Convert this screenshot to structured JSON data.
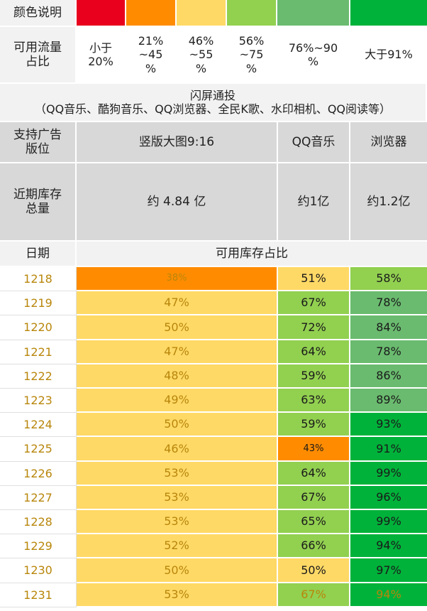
{
  "legend": {
    "label": "颜色说明",
    "colors": [
      "#e8001c",
      "#ff8c00",
      "#ffd966",
      "#92d050",
      "#6abb6f",
      "#00b23a"
    ]
  },
  "ranges": {
    "label": "可用流量\n占比",
    "values": [
      "小于\n20%",
      "21%\n~45\n%",
      "46%\n~55\n%",
      "56%\n~75\n%",
      "76%~90\n%",
      "大于91%"
    ]
  },
  "banner": {
    "title": "闪屏通投",
    "subtitle": "（QQ音乐、酷狗音乐、QQ浏览器、全民K歌、水印相机、QQ阅读等）"
  },
  "ad_positions": {
    "label": "支持广告\n版位",
    "columns": [
      "竖版大图9:16",
      "QQ音乐",
      "浏览器"
    ]
  },
  "inventory": {
    "label": "近期库存\n总量",
    "values": [
      "约 4.84 亿",
      "约1亿",
      "约1.2亿"
    ]
  },
  "table_header": {
    "date": "日期",
    "ratio": "可用库存占比"
  },
  "rows": [
    {
      "date": "1218",
      "values": [
        "38%",
        "51%",
        "58%"
      ]
    },
    {
      "date": "1219",
      "values": [
        "47%",
        "67%",
        "78%"
      ]
    },
    {
      "date": "1220",
      "values": [
        "50%",
        "72%",
        "84%"
      ]
    },
    {
      "date": "1221",
      "values": [
        "47%",
        "64%",
        "78%"
      ]
    },
    {
      "date": "1222",
      "values": [
        "48%",
        "59%",
        "86%"
      ]
    },
    {
      "date": "1223",
      "values": [
        "49%",
        "63%",
        "89%"
      ]
    },
    {
      "date": "1224",
      "values": [
        "50%",
        "59%",
        "93%"
      ]
    },
    {
      "date": "1225",
      "values": [
        "46%",
        "43%",
        "91%"
      ]
    },
    {
      "date": "1226",
      "values": [
        "53%",
        "64%",
        "99%"
      ]
    },
    {
      "date": "1227",
      "values": [
        "53%",
        "67%",
        "96%"
      ]
    },
    {
      "date": "1228",
      "values": [
        "53%",
        "65%",
        "99%"
      ]
    },
    {
      "date": "1229",
      "values": [
        "52%",
        "66%",
        "94%"
      ]
    },
    {
      "date": "1230",
      "values": [
        "50%",
        "50%",
        "97%"
      ]
    },
    {
      "date": "1231",
      "values": [
        "53%",
        "67%",
        "94%"
      ]
    }
  ]
}
